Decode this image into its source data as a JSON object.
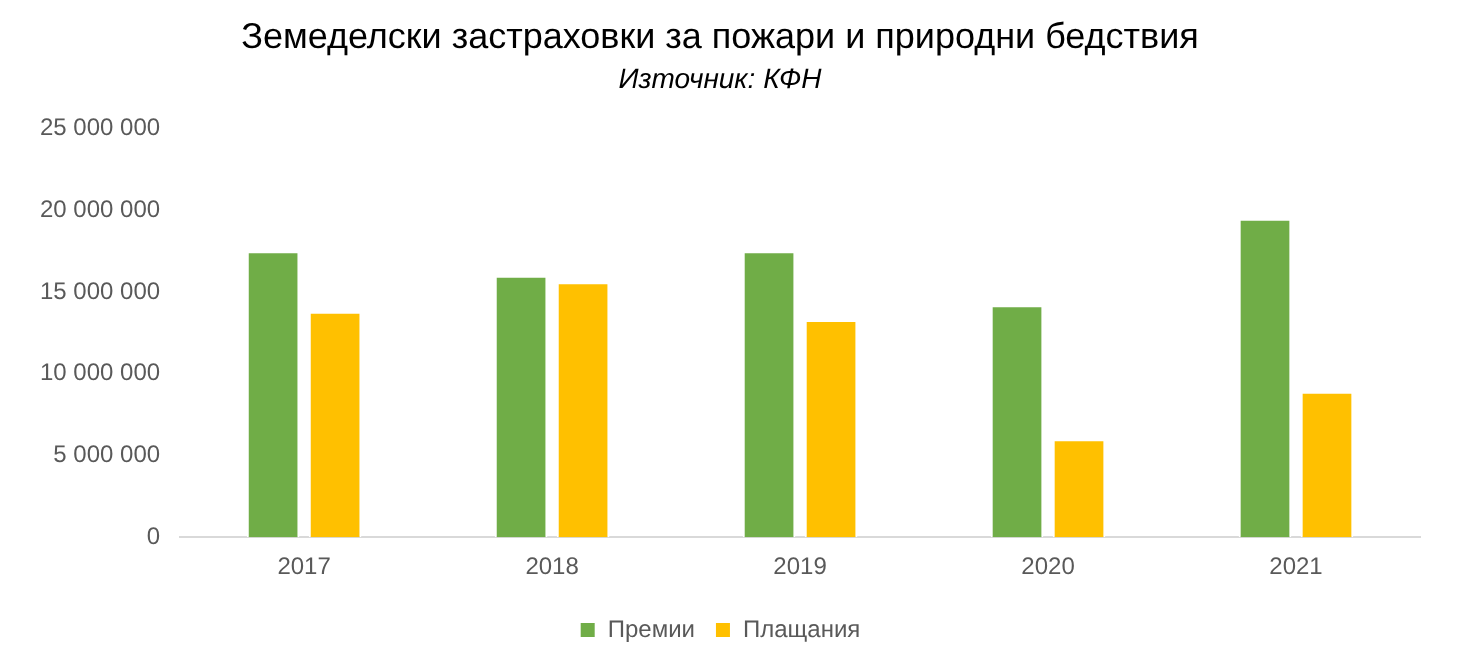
{
  "chart_data": {
    "type": "bar",
    "title": "Земеделски застраховки за пожари и природни бедствия",
    "subtitle": "Източник: КФН",
    "categories": [
      "2017",
      "2018",
      "2019",
      "2020",
      "2021"
    ],
    "series": [
      {
        "name": "Премии",
        "color": "#70ad47",
        "values": [
          17500000,
          16000000,
          17500000,
          14200000,
          19500000
        ]
      },
      {
        "name": "Плащания",
        "color": "#ffc000",
        "values": [
          13800000,
          15600000,
          13300000,
          6000000,
          8900000
        ]
      }
    ],
    "ylim": [
      0,
      25000000
    ],
    "yticks": [
      {
        "value": 0,
        "label": "0"
      },
      {
        "value": 5000000,
        "label": "5 000 000"
      },
      {
        "value": 10000000,
        "label": "10 000 000"
      },
      {
        "value": 15000000,
        "label": "15 000 000"
      },
      {
        "value": 20000000,
        "label": "20 000 000"
      },
      {
        "value": 25000000,
        "label": "25 000 000"
      }
    ],
    "grid": false,
    "legend": "bottom"
  }
}
